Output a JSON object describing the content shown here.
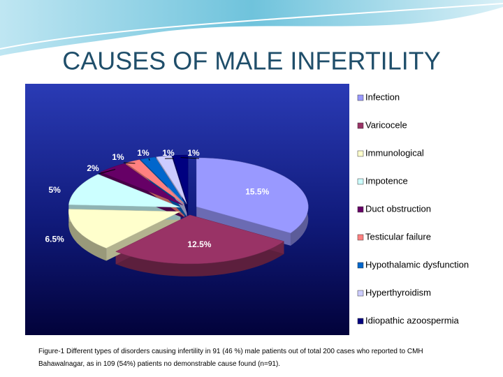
{
  "chart_data": {
    "type": "pie",
    "title": "CAUSES OF MALE INFERTILITY",
    "categories": [
      "Infection",
      "Varicocele",
      "Immunological",
      "Impotence",
      "Duct obstruction",
      "Testicular failure",
      "Hypothalamic dysfunction",
      "Hyperthyroidism",
      "Idiopathic azoospermia"
    ],
    "values": [
      15.5,
      12.5,
      6.5,
      5,
      2,
      1,
      1,
      1,
      1
    ],
    "value_labels": [
      "15.5%",
      "12.5%",
      "6.5%",
      "5%",
      "2%",
      "1%",
      "1%",
      "1%",
      "1%"
    ],
    "colors": [
      "#9999ff",
      "#993366",
      "#ffffcc",
      "#ccffff",
      "#660066",
      "#ff8080",
      "#0066cc",
      "#ccccff",
      "#000080"
    ],
    "legend": "right",
    "caption": "Figure-1 Different types of disorders causing infertility in 91 (46 %) male patients out of total 200 cases who reported to CMH Bahawalnagar,  as in 109 (54%) patients no demonstrable cause found (n=91)."
  }
}
